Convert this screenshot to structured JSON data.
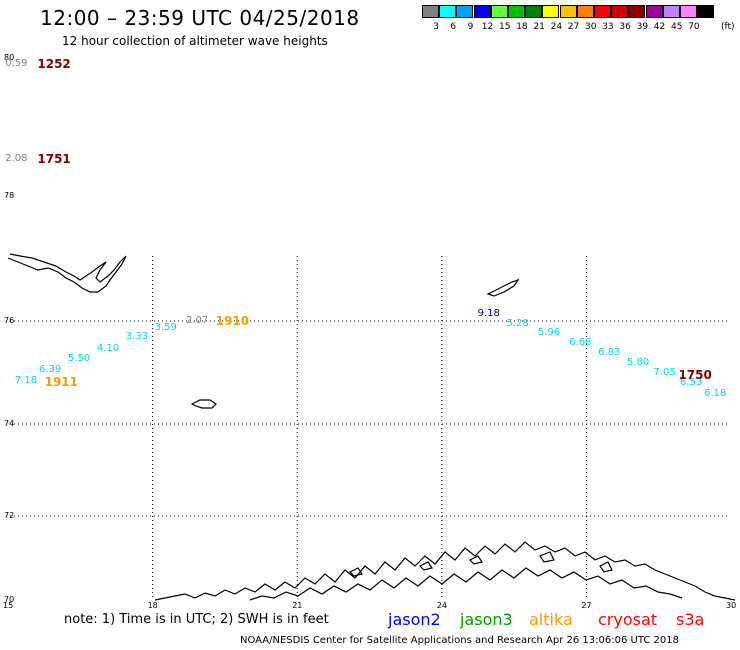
{
  "header": {
    "title": "12:00 – 23:59 UTC 04/25/2018",
    "subtitle": "12 hour collection of altimeter wave heights"
  },
  "color_scale": {
    "unit": "(ft)",
    "bins": [
      {
        "label": "3",
        "color": "#808080"
      },
      {
        "label": "6",
        "color": "#00ffff"
      },
      {
        "label": "9",
        "color": "#00a0ff"
      },
      {
        "label": "12",
        "color": "#0000ff"
      },
      {
        "label": "15",
        "color": "#60ff40"
      },
      {
        "label": "18",
        "color": "#00c000"
      },
      {
        "label": "21",
        "color": "#008000"
      },
      {
        "label": "24",
        "color": "#ffff00"
      },
      {
        "label": "27",
        "color": "#ffc000"
      },
      {
        "label": "30",
        "color": "#ff8000"
      },
      {
        "label": "33",
        "color": "#ff0000"
      },
      {
        "label": "36",
        "color": "#d00000"
      },
      {
        "label": "39",
        "color": "#900000"
      },
      {
        "label": "42",
        "color": "#a000a0"
      },
      {
        "label": "45",
        "color": "#c080ff"
      },
      {
        "label": "70",
        "color": "#ff80ff"
      },
      {
        "label": "",
        "color": "#000000"
      }
    ]
  },
  "axes": {
    "lat_labels": [
      "80",
      "78",
      "76",
      "74",
      "72",
      "70"
    ],
    "lon_labels": [
      "15",
      "18",
      "21",
      "24",
      "27",
      "30"
    ]
  },
  "passes": [
    {
      "value": "0.59",
      "color": "#808080",
      "lon": 15.15,
      "lat": 79.92
    },
    {
      "value": "2.08",
      "color": "#808080",
      "lon": 15.15,
      "lat": 78.54
    },
    {
      "value": "2.07",
      "color": "#808080",
      "lon": 18.9,
      "lat": 76.0
    },
    {
      "value": "3.59",
      "color": "#00d8e8",
      "lon": 18.25,
      "lat": 75.87
    },
    {
      "value": "3.33",
      "color": "#00d8e8",
      "lon": 17.65,
      "lat": 75.68
    },
    {
      "value": "4.10",
      "color": "#00d8e8",
      "lon": 17.05,
      "lat": 75.46
    },
    {
      "value": "5.50",
      "color": "#00d8e8",
      "lon": 16.45,
      "lat": 75.26
    },
    {
      "value": "6.39",
      "color": "#00d8e8",
      "lon": 15.85,
      "lat": 75.04
    },
    {
      "value": "7.18",
      "color": "#00d8e8",
      "lon": 15.35,
      "lat": 74.83
    },
    {
      "value": "9.18",
      "color": "#0000c0",
      "lon": 24.95,
      "lat": 76.12
    },
    {
      "value": "5.28",
      "color": "#00d8e8",
      "lon": 25.55,
      "lat": 75.94
    },
    {
      "value": "5.96",
      "color": "#00d8e8",
      "lon": 26.2,
      "lat": 75.77
    },
    {
      "value": "6.68",
      "color": "#00d8e8",
      "lon": 26.85,
      "lat": 75.58
    },
    {
      "value": "6.83",
      "color": "#00d8e8",
      "lon": 27.45,
      "lat": 75.38
    },
    {
      "value": "5.80",
      "color": "#00d8e8",
      "lon": 28.05,
      "lat": 75.18
    },
    {
      "value": "7.05",
      "color": "#00d8e8",
      "lon": 28.6,
      "lat": 74.99
    },
    {
      "value": "6.53",
      "color": "#00d8e8",
      "lon": 29.15,
      "lat": 74.8
    },
    {
      "value": "6.18",
      "color": "#00d8e8",
      "lon": 29.65,
      "lat": 74.59
    }
  ],
  "pass_times": [
    {
      "time": "1252",
      "color": "#800000",
      "lon": 15.9,
      "lat": 79.92
    },
    {
      "time": "1751",
      "color": "#800000",
      "lon": 15.9,
      "lat": 78.54
    },
    {
      "time": "1910",
      "color": "#ff9900",
      "lon": 19.6,
      "lat": 76.0
    },
    {
      "time": "1911",
      "color": "#ff9900",
      "lon": 16.05,
      "lat": 74.81
    },
    {
      "time": "1750",
      "color": "#800000",
      "lon": 29.2,
      "lat": 74.96
    }
  ],
  "legend": {
    "note": "note: 1) Time is in UTC; 2) SWH is in feet",
    "satellites": [
      {
        "name": "jason2",
        "color": "#0000ff"
      },
      {
        "name": "jason3",
        "color": "#00a000"
      },
      {
        "name": "altika",
        "color": "#ff9900"
      },
      {
        "name": "cryosat",
        "color": "#ff0000"
      },
      {
        "name": "s3a",
        "color": "#ff0000"
      }
    ]
  },
  "footer": "NOAA/NESDIS Center for Satellite Applications and Research    Apr 26 13:06:06 UTC 2018"
}
